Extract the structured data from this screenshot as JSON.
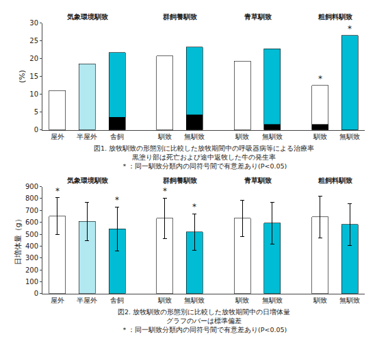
{
  "chart_data": [
    {
      "type": "bar",
      "stacked": true,
      "ylabel": "(%)",
      "ylim": [
        0,
        30
      ],
      "yticks": [
        0,
        5,
        10,
        15,
        20,
        25,
        30
      ],
      "grid": false,
      "groups": [
        {
          "subtitle": "気象環境馴致",
          "categories": [
            "屋外",
            "半屋外",
            "舎飼"
          ],
          "series": [
            {
              "color": "black",
              "values": [
                0.0,
                0.0,
                3.5
              ]
            },
            {
              "colors": [
                "#ffffff",
                "#b2e8f0",
                "#00bcd4"
              ],
              "values": [
                11.0,
                18.5,
                18.2
              ]
            }
          ],
          "annotations": []
        },
        {
          "subtitle": "群飼養馴致",
          "categories": [
            "馴致",
            "無馴致"
          ],
          "series": [
            {
              "color": "black",
              "values": [
                0.0,
                4.2
              ]
            },
            {
              "colors": [
                "#ffffff",
                "#00bcd4"
              ],
              "values": [
                20.7,
                19.0
              ]
            }
          ],
          "annotations": []
        },
        {
          "subtitle": "青草馴致",
          "categories": [
            "馴致",
            "無馴致"
          ],
          "series": [
            {
              "color": "black",
              "values": [
                0.0,
                1.5
              ]
            },
            {
              "colors": [
                "#ffffff",
                "#00bcd4"
              ],
              "values": [
                19.3,
                21.3
              ]
            }
          ],
          "annotations": []
        },
        {
          "subtitle": "粗飼料馴致",
          "categories": [
            "馴致",
            "無馴致"
          ],
          "series": [
            {
              "color": "black",
              "values": [
                1.5,
                0.0
              ]
            },
            {
              "colors": [
                "#ffffff",
                "#00bcd4"
              ],
              "values": [
                11.0,
                26.5
              ]
            }
          ],
          "annotations": [
            {
              "category": "馴致",
              "text": "*"
            },
            {
              "category": "無馴致",
              "text": "*"
            }
          ]
        }
      ],
      "caption": [
        "図1. 放牧馴致の形態別に比較した放牧期間中の呼吸器病等による治療率",
        "黒塗り部は死亡および途中返牧した牛の発生率",
        "＊：同一馴致分類内の同符号間で有意差あり(P<0.05)"
      ]
    },
    {
      "type": "bar",
      "ylabel": "日増体量（g）",
      "ylim": [
        0,
        900
      ],
      "yticks": [
        0,
        100,
        200,
        300,
        400,
        500,
        600,
        700,
        800,
        900
      ],
      "grid": false,
      "groups": [
        {
          "subtitle": "気象環境馴致",
          "categories": [
            "屋外",
            "半屋外",
            "舎飼"
          ],
          "colors": [
            "#ffffff",
            "#b2e8f0",
            "#00bcd4"
          ],
          "values": [
            652,
            608,
            544
          ],
          "errors": [
            155,
            160,
            185
          ],
          "annotations": [
            {
              "category": "屋外",
              "text": "*"
            },
            {
              "category": "舎飼",
              "text": "*"
            }
          ]
        },
        {
          "subtitle": "群飼養馴致",
          "categories": [
            "馴致",
            "無馴致"
          ],
          "colors": [
            "#ffffff",
            "#00bcd4"
          ],
          "values": [
            635,
            518
          ],
          "errors": [
            170,
            155
          ],
          "annotations": [
            {
              "category": "馴致",
              "text": "*"
            },
            {
              "category": "無馴致",
              "text": "*"
            }
          ]
        },
        {
          "subtitle": "青草馴致",
          "categories": [
            "馴致",
            "無馴致"
          ],
          "colors": [
            "#ffffff",
            "#00bcd4"
          ],
          "values": [
            633,
            594
          ],
          "errors": [
            155,
            175
          ],
          "annotations": []
        },
        {
          "subtitle": "粗飼料馴致",
          "categories": [
            "馴致",
            "無馴致"
          ],
          "colors": [
            "#ffffff",
            "#00bcd4"
          ],
          "values": [
            645,
            582
          ],
          "errors": [
            175,
            175
          ],
          "annotations": []
        }
      ],
      "caption": [
        "図2. 放牧馴致の形態別に比較した放牧期間中の日増体量",
        "グラフのバーは標準偏差",
        "＊：同一馴致分類内の同符号間で有意差あり(P<0.05)"
      ]
    }
  ]
}
